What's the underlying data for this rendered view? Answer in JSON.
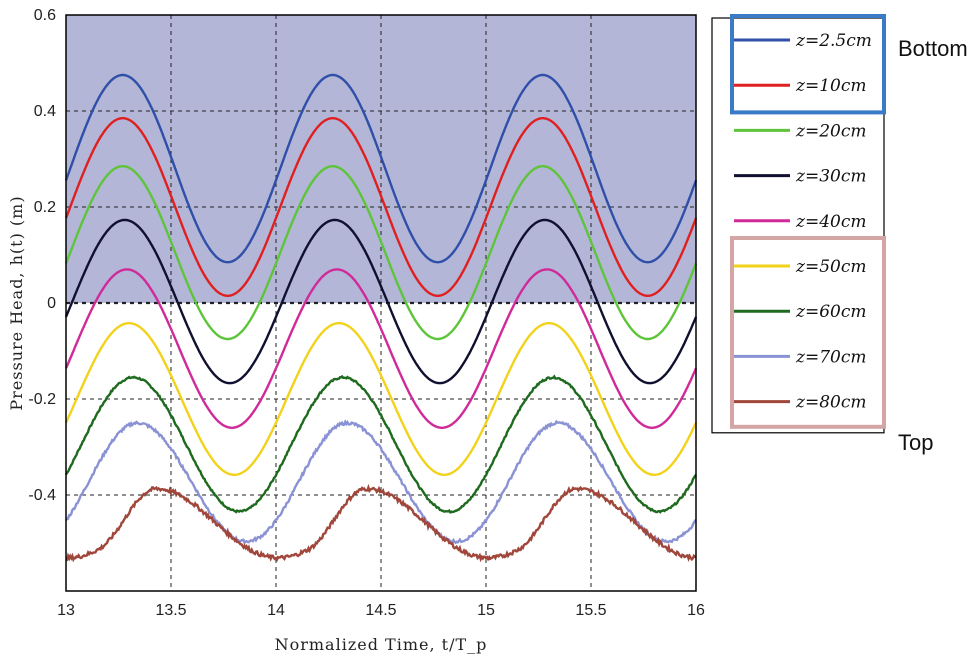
{
  "chart_data": {
    "type": "line",
    "xlabel": "Normalized Time, t/T_p",
    "ylabel": "Pressure Head, h(t) (m)",
    "xlim": [
      13,
      16
    ],
    "ylim": [
      -0.6,
      0.6
    ],
    "x_ticks": [
      "13",
      "13.5",
      "14",
      "14.5",
      "15",
      "15.5",
      "16"
    ],
    "y_ticks": [
      "-0.4",
      "-0.2",
      "0",
      "0.2",
      "0.4",
      "0.6"
    ],
    "grid": true,
    "shaded_region": {
      "from": 0,
      "to": 0.6,
      "color": "#b3b6d6"
    },
    "legend_position": "right",
    "group_labels": {
      "bottom": "Bottom",
      "top": "Top"
    },
    "series": [
      {
        "name": "z=2.5cm",
        "color": "#2f4fa8",
        "mean": 0.28,
        "amplitude": 0.195,
        "phase_peak": 13.27,
        "skew": 0.0,
        "noise": 0.0
      },
      {
        "name": "z=10cm",
        "color": "#e02020",
        "mean": 0.2,
        "amplitude": 0.185,
        "phase_peak": 13.27,
        "skew": 0.0,
        "noise": 0.0
      },
      {
        "name": "z=20cm",
        "color": "#5ec43a",
        "mean": 0.105,
        "amplitude": 0.18,
        "phase_peak": 13.27,
        "skew": 0.0,
        "noise": 0.0
      },
      {
        "name": "z=30cm",
        "color": "#101030",
        "mean": 0.003,
        "amplitude": 0.17,
        "phase_peak": 13.28,
        "skew": 0.0,
        "noise": 0.0
      },
      {
        "name": "z=40cm",
        "color": "#d02a9a",
        "mean": -0.095,
        "amplitude": 0.165,
        "phase_peak": 13.29,
        "skew": 0.0,
        "noise": 0.0
      },
      {
        "name": "z=50cm",
        "color": "#f2d21a",
        "mean": -0.2,
        "amplitude": 0.158,
        "phase_peak": 13.3,
        "skew": 0.05,
        "noise": 0.0
      },
      {
        "name": "z=60cm",
        "color": "#1e6a1e",
        "mean": -0.295,
        "amplitude": 0.14,
        "phase_peak": 13.32,
        "skew": 0.12,
        "noise": 0.002
      },
      {
        "name": "z=70cm",
        "color": "#8a92d4",
        "mean": -0.375,
        "amplitude": 0.125,
        "phase_peak": 13.34,
        "skew": 0.25,
        "noise": 0.003
      },
      {
        "name": "z=80cm",
        "color": "#a0463a",
        "mean": -0.465,
        "amplitude": 0.078,
        "phase_peak": 13.43,
        "skew": 0.55,
        "noise": 0.004
      }
    ]
  }
}
